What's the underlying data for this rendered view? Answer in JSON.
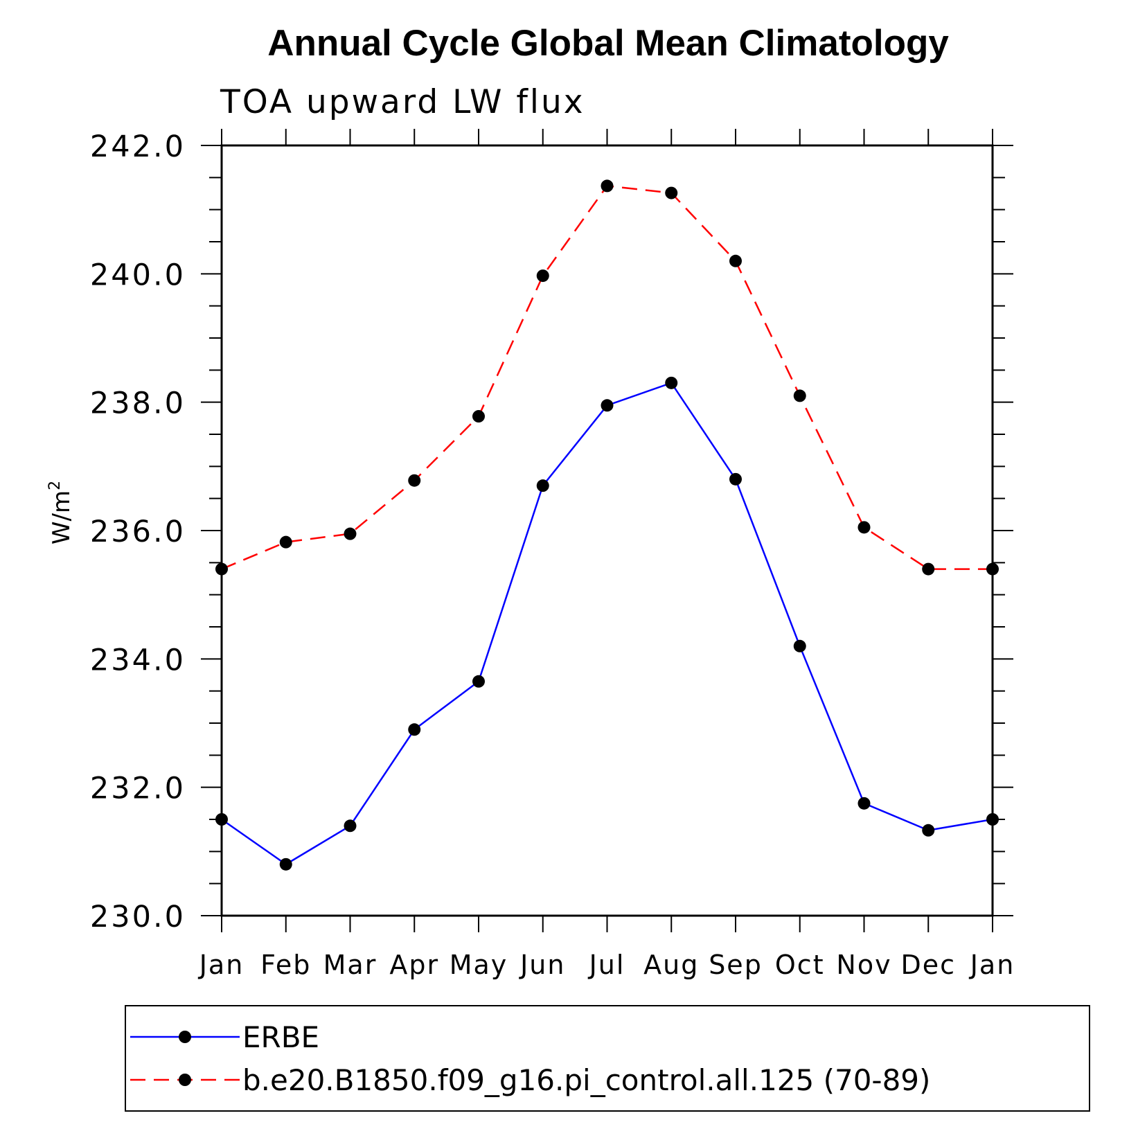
{
  "chart_data": {
    "type": "line",
    "title": "Annual Cycle Global Mean Climatology",
    "subtitle": "TOA upward LW flux",
    "ylabel_base": "W/m",
    "ylabel_sup": "2",
    "xlabel": "",
    "categories": [
      "Jan",
      "Feb",
      "Mar",
      "Apr",
      "May",
      "Jun",
      "Jul",
      "Aug",
      "Sep",
      "Oct",
      "Nov",
      "Dec",
      "Jan"
    ],
    "ylim": [
      230,
      242
    ],
    "yticks": [
      230,
      232,
      234,
      236,
      238,
      240,
      242
    ],
    "ytick_labels": [
      "230.0",
      "232.0",
      "234.0",
      "236.0",
      "238.0",
      "240.0",
      "242.0"
    ],
    "legend_position": "bottom",
    "series": [
      {
        "name": "ERBE",
        "color": "#0000ff",
        "dash": "solid",
        "marker": "filled-circle",
        "values": [
          231.5,
          230.8,
          231.4,
          232.9,
          233.65,
          236.7,
          237.95,
          238.3,
          236.8,
          234.2,
          231.75,
          231.33,
          231.5
        ]
      },
      {
        "name": "b.e20.B1850.f09_g16.pi_control.all.125 (70-89)",
        "color": "#ff0000",
        "dash": "dashed",
        "marker": "filled-circle",
        "values": [
          235.4,
          235.82,
          235.95,
          236.78,
          237.78,
          239.97,
          241.37,
          241.26,
          240.2,
          238.1,
          236.05,
          235.4,
          235.4
        ]
      }
    ]
  }
}
